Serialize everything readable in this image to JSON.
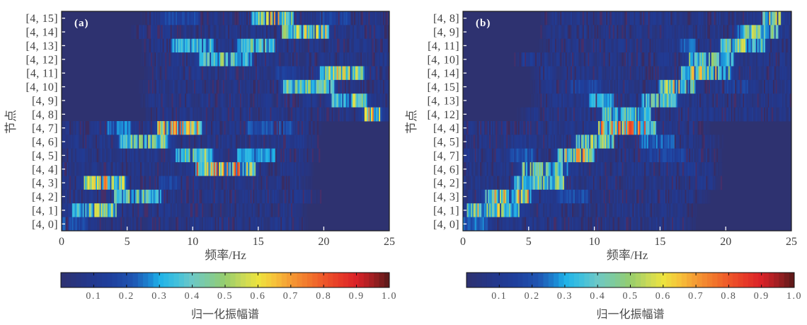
{
  "figure": {
    "description": "Normalized amplitude spectra per node, two panels"
  },
  "colormap": [
    [
      0.0,
      "#2e3270"
    ],
    [
      0.08,
      "#24378a"
    ],
    [
      0.15,
      "#1f3f9c"
    ],
    [
      0.22,
      "#1f55b2"
    ],
    [
      0.27,
      "#1c86d2"
    ],
    [
      0.3,
      "#1fb2e8"
    ],
    [
      0.35,
      "#40c0dd"
    ],
    [
      0.4,
      "#6dc8c6"
    ],
    [
      0.45,
      "#7fcb9c"
    ],
    [
      0.5,
      "#96cd6c"
    ],
    [
      0.55,
      "#c6d95a"
    ],
    [
      0.6,
      "#ede43e"
    ],
    [
      0.65,
      "#f6c23a"
    ],
    [
      0.7,
      "#f59a33"
    ],
    [
      0.75,
      "#f2792d"
    ],
    [
      0.8,
      "#ee5729"
    ],
    [
      0.85,
      "#e63a28"
    ],
    [
      0.9,
      "#da2228"
    ],
    [
      0.95,
      "#a01f22"
    ],
    [
      1.0,
      "#561919"
    ]
  ],
  "chart_data": [
    {
      "type": "heatmap",
      "id": "a",
      "panel_label": "(a)",
      "title": "",
      "xlabel": "频率/Hz",
      "ylabel": "节点",
      "xlim": [
        0,
        25
      ],
      "xticks": [
        0,
        5,
        10,
        15,
        20,
        25
      ],
      "grid": false,
      "value_meaning": "normalized amplitude 0-1; rows listed top to bottom; bands give approximate frequency range (Hz) and peak amplitude",
      "rows": [
        {
          "label": "[4, 15]",
          "noise": [
            5.8,
            25
          ],
          "bands": [
            {
              "from": 7.6,
              "to": 10.5,
              "peak": 0.22
            },
            {
              "from": 14.5,
              "to": 17.7,
              "peak": 0.75
            },
            {
              "from": 19.7,
              "to": 22.0,
              "peak": 0.22
            }
          ]
        },
        {
          "label": "[4, 14]",
          "noise": [
            5.5,
            25
          ],
          "bands": [
            {
              "from": 5.8,
              "to": 8.4,
              "peak": 0.12
            },
            {
              "from": 16.8,
              "to": 20.4,
              "peak": 0.7
            }
          ]
        },
        {
          "label": "[4, 13]",
          "noise": [
            5.8,
            25
          ],
          "bands": [
            {
              "from": 8.4,
              "to": 11.6,
              "peak": 0.42
            },
            {
              "from": 13.4,
              "to": 16.3,
              "peak": 0.5
            }
          ]
        },
        {
          "label": "[4, 12]",
          "noise": [
            5.8,
            25
          ],
          "bands": [
            {
              "from": 10.5,
              "to": 14.5,
              "peak": 0.55
            }
          ]
        },
        {
          "label": "[4, 11]",
          "noise": [
            6.0,
            25
          ],
          "bands": [
            {
              "from": 16.3,
              "to": 17.9,
              "peak": 0.22
            },
            {
              "from": 19.7,
              "to": 23.1,
              "peak": 0.7
            }
          ]
        },
        {
          "label": "[4, 10]",
          "noise": [
            5.8,
            25
          ],
          "bands": [
            {
              "from": 16.8,
              "to": 20.8,
              "peak": 0.55
            }
          ]
        },
        {
          "label": "[4, 9]",
          "noise": [
            5.8,
            25
          ],
          "bands": [
            {
              "from": 20.6,
              "to": 23.3,
              "peak": 0.62
            }
          ]
        },
        {
          "label": "[4, 8]",
          "noise": [
            6.0,
            25
          ],
          "bands": [
            {
              "from": 23.0,
              "to": 24.4,
              "peak": 0.8
            }
          ]
        },
        {
          "label": "[4, 7]",
          "noise": [
            0,
            20
          ],
          "bands": [
            {
              "from": 3.5,
              "to": 5.3,
              "peak": 0.3
            },
            {
              "from": 7.3,
              "to": 10.7,
              "peak": 0.82
            },
            {
              "from": 14.1,
              "to": 17.6,
              "peak": 0.25
            }
          ]
        },
        {
          "label": "[4, 6]",
          "noise": [
            0,
            20
          ],
          "bands": [
            {
              "from": 4.4,
              "to": 8.2,
              "peak": 0.58
            },
            {
              "from": 16.8,
              "to": 18.5,
              "peak": 0.12
            }
          ]
        },
        {
          "label": "[4, 5]",
          "noise": [
            0,
            20
          ],
          "bands": [
            {
              "from": 8.7,
              "to": 11.6,
              "peak": 0.62
            },
            {
              "from": 13.4,
              "to": 16.3,
              "peak": 0.35
            }
          ]
        },
        {
          "label": "[4, 4]",
          "noise": [
            0,
            19.5
          ],
          "bands": [
            {
              "from": 10.2,
              "to": 14.8,
              "peak": 0.88
            }
          ]
        },
        {
          "label": "[4, 3]",
          "noise": [
            0,
            19.5
          ],
          "bands": [
            {
              "from": 1.7,
              "to": 4.9,
              "peak": 0.82
            },
            {
              "from": 7.3,
              "to": 9.1,
              "peak": 0.22
            }
          ]
        },
        {
          "label": "[4, 2]",
          "noise": [
            0,
            20
          ],
          "bands": [
            {
              "from": 4.0,
              "to": 7.6,
              "peak": 0.56
            },
            {
              "from": 17.5,
              "to": 18.6,
              "peak": 0.12
            }
          ]
        },
        {
          "label": "[4, 1]",
          "noise": [
            0,
            19
          ],
          "bands": [
            {
              "from": 0.8,
              "to": 4.2,
              "peak": 0.62
            }
          ]
        },
        {
          "label": "[4, 0]",
          "noise": [
            0,
            19
          ],
          "bands": [
            {
              "from": 0.0,
              "to": 2.0,
              "peak": 0.25
            }
          ]
        }
      ],
      "colorbar": {
        "label": "归一化振幅谱",
        "range": [
          0,
          1.0
        ],
        "orientation": "horizontal",
        "placement": "bottom",
        "ticks": [
          0.1,
          0.2,
          0.3,
          0.4,
          0.5,
          0.6,
          0.7,
          0.8,
          0.9,
          1.0
        ],
        "tick_labels": [
          "0.1",
          "0.2",
          "0.3",
          "0.4",
          "0.5",
          "0.6",
          "0.7",
          "0.8",
          "0.9",
          "1.0"
        ]
      }
    },
    {
      "type": "heatmap",
      "id": "b",
      "panel_label": "(b)",
      "title": "",
      "xlabel": "频率/Hz",
      "ylabel": "节点",
      "xlim": [
        0,
        25
      ],
      "xticks": [
        0,
        5,
        10,
        15,
        20,
        25
      ],
      "grid": false,
      "value_meaning": "normalized amplitude 0-1; rows listed top to bottom; bands give approximate frequency range (Hz) and peak amplitude",
      "rows": [
        {
          "label": "[4, 8]",
          "noise": [
            5.7,
            25
          ],
          "bands": [
            {
              "from": 22.8,
              "to": 24.2,
              "peak": 0.8
            }
          ]
        },
        {
          "label": "[4, 9]",
          "noise": [
            5.7,
            25
          ],
          "bands": [
            {
              "from": 20.8,
              "to": 24.0,
              "peak": 0.6
            }
          ]
        },
        {
          "label": "[4, 11]",
          "noise": [
            5.7,
            25
          ],
          "bands": [
            {
              "from": 16.5,
              "to": 17.7,
              "peak": 0.3
            },
            {
              "from": 19.6,
              "to": 23.0,
              "peak": 0.62
            }
          ]
        },
        {
          "label": "[4, 10]",
          "noise": [
            4.5,
            25
          ],
          "bands": [
            {
              "from": 4.5,
              "to": 6.0,
              "peak": 0.15
            },
            {
              "from": 17.2,
              "to": 20.6,
              "peak": 0.52
            }
          ]
        },
        {
          "label": "[4, 14]",
          "noise": [
            5.0,
            25
          ],
          "bands": [
            {
              "from": 5.8,
              "to": 7.0,
              "peak": 0.15
            },
            {
              "from": 16.6,
              "to": 20.4,
              "peak": 0.72
            }
          ]
        },
        {
          "label": "[4, 15]",
          "noise": [
            5.0,
            25
          ],
          "bands": [
            {
              "from": 8.2,
              "to": 10.6,
              "peak": 0.22
            },
            {
              "from": 14.9,
              "to": 17.7,
              "peak": 0.72
            },
            {
              "from": 19.6,
              "to": 21.7,
              "peak": 0.2
            }
          ]
        },
        {
          "label": "[4, 13]",
          "noise": [
            5.0,
            25
          ],
          "bands": [
            {
              "from": 9.6,
              "to": 11.5,
              "peak": 0.38
            },
            {
              "from": 13.6,
              "to": 16.3,
              "peak": 0.5
            }
          ]
        },
        {
          "label": "[4, 12]",
          "noise": [
            4.0,
            25
          ],
          "bands": [
            {
              "from": 10.6,
              "to": 14.3,
              "peak": 0.5
            }
          ]
        },
        {
          "label": "[4, 4]",
          "noise": [
            0,
            19
          ],
          "bands": [
            {
              "from": 10.2,
              "to": 14.7,
              "peak": 0.88
            }
          ]
        },
        {
          "label": "[4, 5]",
          "noise": [
            0,
            20
          ],
          "bands": [
            {
              "from": 8.6,
              "to": 11.5,
              "peak": 0.62
            },
            {
              "from": 13.4,
              "to": 16.1,
              "peak": 0.3
            }
          ]
        },
        {
          "label": "[4, 7]",
          "noise": [
            0,
            20
          ],
          "bands": [
            {
              "from": 3.6,
              "to": 5.5,
              "peak": 0.25
            },
            {
              "from": 7.2,
              "to": 10.0,
              "peak": 0.75
            },
            {
              "from": 14.0,
              "to": 17.0,
              "peak": 0.2
            }
          ]
        },
        {
          "label": "[4, 6]",
          "noise": [
            0,
            20
          ],
          "bands": [
            {
              "from": 4.5,
              "to": 8.0,
              "peak": 0.56
            },
            {
              "from": 16.5,
              "to": 18.0,
              "peak": 0.15
            }
          ]
        },
        {
          "label": "[4, 2]",
          "noise": [
            0,
            20
          ],
          "bands": [
            {
              "from": 3.9,
              "to": 7.7,
              "peak": 0.56
            },
            {
              "from": 17.5,
              "to": 19.0,
              "peak": 0.12
            }
          ]
        },
        {
          "label": "[4, 3]",
          "noise": [
            0,
            19
          ],
          "bands": [
            {
              "from": 1.6,
              "to": 5.2,
              "peak": 0.8
            },
            {
              "from": 7.2,
              "to": 9.5,
              "peak": 0.25
            }
          ]
        },
        {
          "label": "[4, 1]",
          "noise": [
            0,
            18
          ],
          "bands": [
            {
              "from": 0.3,
              "to": 4.3,
              "peak": 0.68
            }
          ]
        },
        {
          "label": "[4, 0]",
          "noise": [
            0,
            18
          ],
          "bands": [
            {
              "from": 0.0,
              "to": 1.9,
              "peak": 0.3
            }
          ]
        }
      ],
      "colorbar": {
        "label": "归一化振幅谱",
        "range": [
          0,
          1.0
        ],
        "orientation": "horizontal",
        "placement": "bottom",
        "ticks": [
          0.1,
          0.2,
          0.3,
          0.4,
          0.5,
          0.6,
          0.7,
          0.8,
          0.9,
          1.0
        ],
        "tick_labels": [
          "0.1",
          "0.2",
          "0.3",
          "0.4",
          "0.5",
          "0.6",
          "0.7",
          "0.8",
          "0.9",
          "1.0"
        ]
      }
    }
  ]
}
